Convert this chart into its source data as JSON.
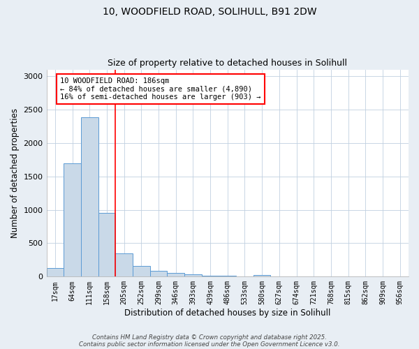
{
  "title1": "10, WOODFIELD ROAD, SOLIHULL, B91 2DW",
  "title2": "Size of property relative to detached houses in Solihull",
  "xlabel": "Distribution of detached houses by size in Solihull",
  "ylabel": "Number of detached properties",
  "categories": [
    "17sqm",
    "64sqm",
    "111sqm",
    "158sqm",
    "205sqm",
    "252sqm",
    "299sqm",
    "346sqm",
    "393sqm",
    "439sqm",
    "486sqm",
    "533sqm",
    "580sqm",
    "627sqm",
    "674sqm",
    "721sqm",
    "768sqm",
    "815sqm",
    "862sqm",
    "909sqm",
    "956sqm"
  ],
  "values": [
    130,
    1700,
    2390,
    950,
    350,
    160,
    90,
    60,
    40,
    15,
    10,
    5,
    20,
    2,
    1,
    1,
    0,
    0,
    0,
    0,
    0
  ],
  "bar_color": "#c9d9e8",
  "bar_edge_color": "#5b9bd5",
  "red_line_index": 3.5,
  "ylim": [
    0,
    3100
  ],
  "yticks": [
    0,
    500,
    1000,
    1500,
    2000,
    2500,
    3000
  ],
  "annotation_text": "10 WOODFIELD ROAD: 186sqm\n← 84% of detached houses are smaller (4,890)\n16% of semi-detached houses are larger (903) →",
  "footer1": "Contains HM Land Registry data © Crown copyright and database right 2025.",
  "footer2": "Contains public sector information licensed under the Open Government Licence v3.0.",
  "background_color": "#e8eef4",
  "plot_background": "#ffffff",
  "grid_color": "#c0d0e0"
}
